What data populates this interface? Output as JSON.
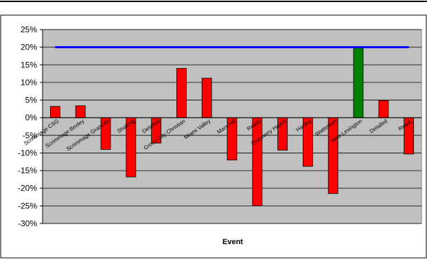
{
  "chart_data": {
    "type": "bar",
    "title": "",
    "xlabel": "Event",
    "ylabel": "",
    "ylim": [
      -30,
      25
    ],
    "yticks": [
      25,
      20,
      15,
      10,
      5,
      0,
      -5,
      -10,
      -15,
      -20,
      -25,
      -30
    ],
    "ytick_labels": [
      "25%",
      "20%",
      "15%",
      "10%",
      "5%",
      "0%",
      "-5%",
      "-10%",
      "-15%",
      "-20%",
      "-25%",
      "-30%"
    ],
    "grid": true,
    "legend": "none",
    "categories": [
      "Scrimmage CSG",
      "Scrimmage Bexley",
      "Scrimmage Granville",
      "Shaking",
      "Detailed",
      "Grove City Christian",
      "Miami Valley",
      "Mars Hill",
      "Ready",
      "Discovery Hayes",
      "Hartley",
      "Watterson",
      "New Lexington",
      "Detailed",
      "Ready"
    ],
    "values": [
      3.2,
      3.4,
      -9,
      -16.8,
      -7.2,
      14,
      11.2,
      -12,
      -25,
      -9.2,
      -13.8,
      -21.5,
      20,
      4.9,
      -10.3
    ],
    "highlight_index": 12,
    "target_line": 20,
    "colors": {
      "bar": "#ff0000",
      "highlight": "#008000",
      "target_line": "#0000ff",
      "plot_bg": "#c0c0c0",
      "grid": "#000000"
    }
  }
}
